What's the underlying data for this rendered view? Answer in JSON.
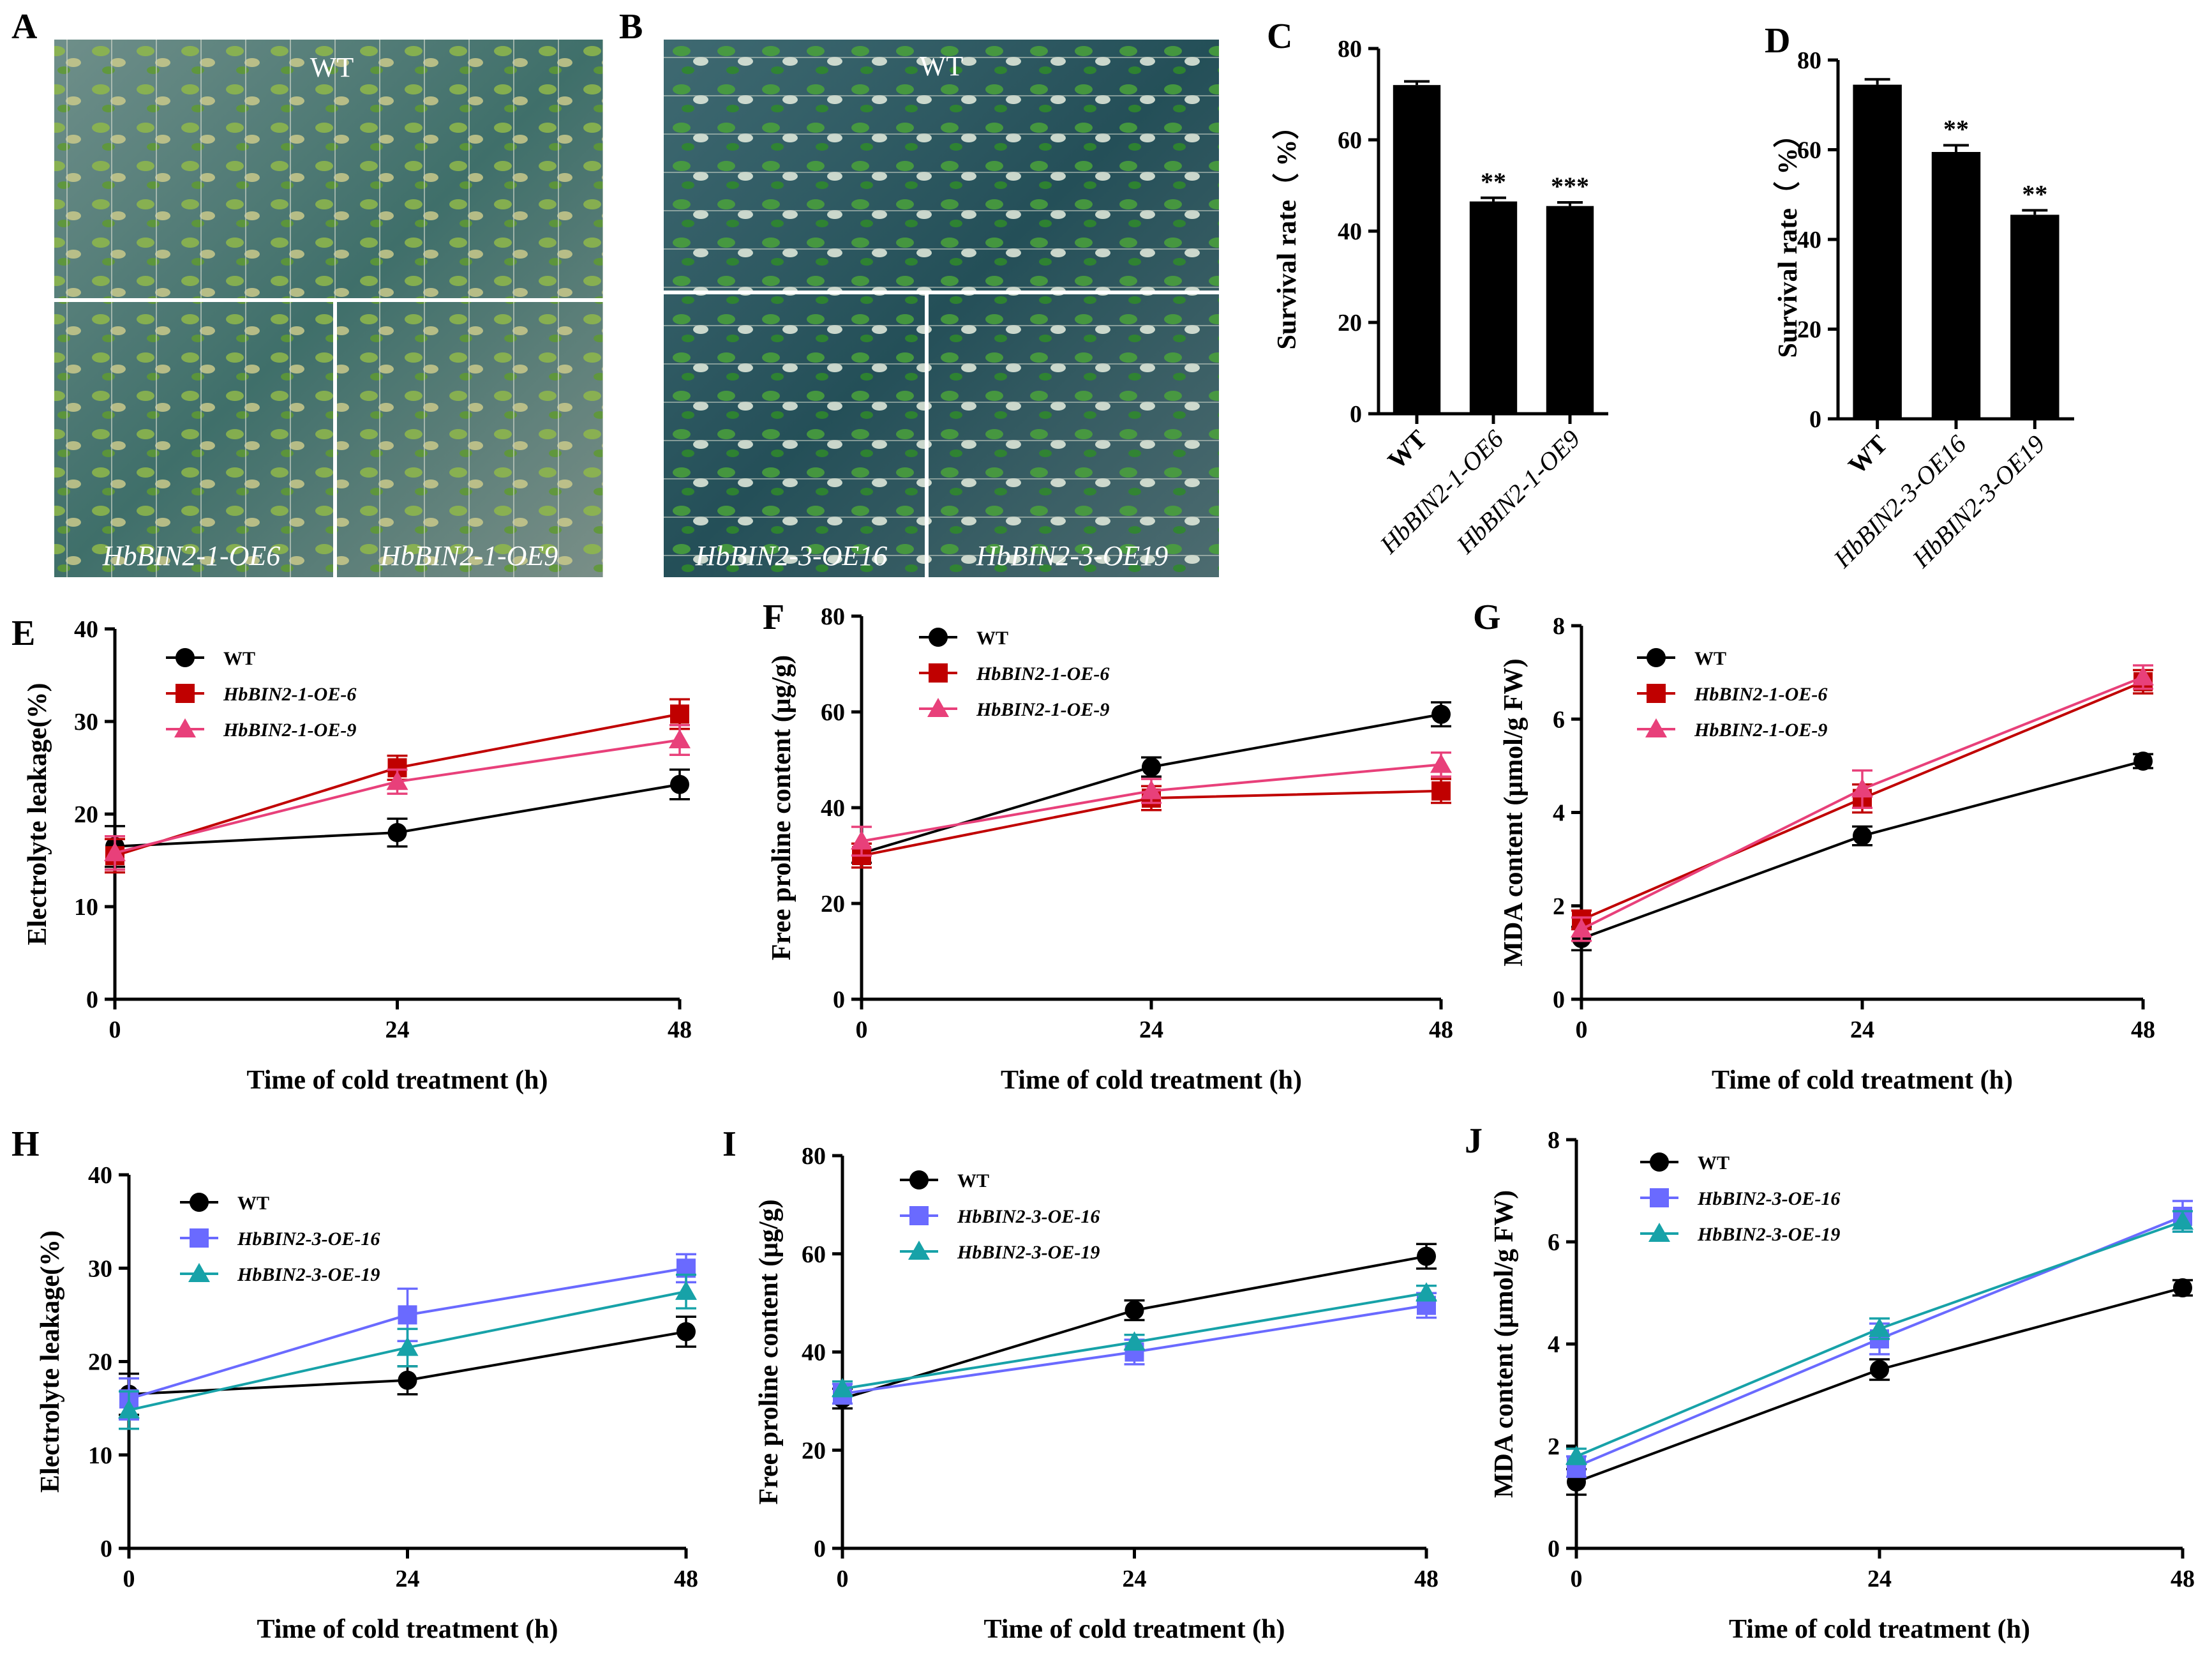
{
  "photos": {
    "A": {
      "letter": "A",
      "top_label": "WT",
      "bottom_left_label": "HbBIN2-1-OE6",
      "bottom_right_label": "HbBIN2-1-OE9"
    },
    "B": {
      "letter": "B",
      "top_label": "WT",
      "bottom_left_label": "HbBIN2-3-OE16",
      "bottom_right_label": "HbBIN2-3-OE19"
    }
  },
  "colors": {
    "wt": "#000000",
    "oe1_line6": "#c00000",
    "oe1_line9": "#e8407a",
    "oe3_line16": "#6a6aff",
    "oe3_line19": "#17a2a8",
    "bar": "#000000"
  },
  "chart_data": [
    {
      "id": "C",
      "letter": "C",
      "type": "bar",
      "categories": [
        "WT",
        "HbBIN2-1-OE6",
        "HbBIN2-1-OE9"
      ],
      "values": [
        72,
        46.5,
        45.5
      ],
      "errors": [
        0.8,
        0.8,
        0.8
      ],
      "significance": [
        "",
        "**",
        "***"
      ],
      "ylabel": "Survival rate（ %）",
      "ylim": [
        0,
        80
      ],
      "yticks": [
        0,
        20,
        40,
        60,
        80
      ]
    },
    {
      "id": "D",
      "letter": "D",
      "type": "bar",
      "categories": [
        "WT",
        "HbBIN2-3-OE16",
        "HbBIN2-3-OE19"
      ],
      "values": [
        74.5,
        59.5,
        45.5
      ],
      "errors": [
        1.2,
        1.5,
        1.0
      ],
      "significance": [
        "",
        "**",
        "**"
      ],
      "ylabel": "Survival rate（ %）",
      "ylim": [
        0,
        80
      ],
      "yticks": [
        0,
        20,
        40,
        60,
        80
      ]
    },
    {
      "id": "E",
      "letter": "E",
      "type": "line",
      "x": [
        0,
        24,
        48
      ],
      "xticks": [
        0,
        24,
        48
      ],
      "xlabel": "Time of cold treatment (h)",
      "ylabel": "Electrolyte leakage(%)",
      "ylim": [
        0,
        40
      ],
      "yticks": [
        0,
        10,
        20,
        30,
        40
      ],
      "series": [
        {
          "name": "WT",
          "marker": "circle",
          "color": "#000000",
          "values": [
            16.5,
            18,
            23.2
          ],
          "errors": [
            2.2,
            1.5,
            1.6
          ]
        },
        {
          "name": "HbBIN2-1-OE-6",
          "marker": "square",
          "color": "#c00000",
          "values": [
            15.5,
            25,
            30.8
          ],
          "errors": [
            1.8,
            1.3,
            1.6
          ]
        },
        {
          "name": "HbBIN2-1-OE-9",
          "marker": "triangle",
          "color": "#e8407a",
          "values": [
            15.8,
            23.5,
            28
          ],
          "errors": [
            1.8,
            1.3,
            1.6
          ]
        }
      ]
    },
    {
      "id": "F",
      "letter": "F",
      "type": "line",
      "x": [
        0,
        24,
        48
      ],
      "xticks": [
        0,
        24,
        48
      ],
      "xlabel": "Time of cold treatment (h)",
      "ylabel": "Free proline content (μg/g)",
      "ylim": [
        0,
        80
      ],
      "yticks": [
        0,
        20,
        40,
        60,
        80
      ],
      "series": [
        {
          "name": "WT",
          "marker": "circle",
          "color": "#000000",
          "values": [
            30.5,
            48.5,
            59.5
          ],
          "errors": [
            2.0,
            2.0,
            2.5
          ]
        },
        {
          "name": "HbBIN2-1-OE-6",
          "marker": "square",
          "color": "#c00000",
          "values": [
            30,
            42,
            43.5
          ],
          "errors": [
            2.5,
            2.5,
            2.5
          ]
        },
        {
          "name": "HbBIN2-1-OE-9",
          "marker": "triangle",
          "color": "#e8407a",
          "values": [
            33,
            43.5,
            49
          ],
          "errors": [
            3.0,
            2.5,
            2.5
          ]
        }
      ]
    },
    {
      "id": "G",
      "letter": "G",
      "type": "line",
      "x": [
        0,
        24,
        48
      ],
      "xticks": [
        0,
        24,
        48
      ],
      "xlabel": "Time of cold treatment (h)",
      "ylabel": "MDA content (μmol/g FW)",
      "ylim": [
        0,
        8
      ],
      "yticks": [
        0,
        2,
        4,
        6,
        8
      ],
      "series": [
        {
          "name": "WT",
          "marker": "circle",
          "color": "#000000",
          "values": [
            1.3,
            3.5,
            5.1
          ],
          "errors": [
            0.25,
            0.2,
            0.15
          ]
        },
        {
          "name": "HbBIN2-1-OE-6",
          "marker": "square",
          "color": "#c00000",
          "values": [
            1.7,
            4.3,
            6.8
          ],
          "errors": [
            0.2,
            0.3,
            0.25
          ]
        },
        {
          "name": "HbBIN2-1-OE-9",
          "marker": "triangle",
          "color": "#e8407a",
          "values": [
            1.5,
            4.5,
            6.9
          ],
          "errors": [
            0.25,
            0.4,
            0.25
          ]
        }
      ]
    },
    {
      "id": "H",
      "letter": "H",
      "type": "line",
      "x": [
        0,
        24,
        48
      ],
      "xticks": [
        0,
        24,
        48
      ],
      "xlabel": "Time of cold treatment (h)",
      "ylabel": "Electrolyte leakage(%)",
      "ylim": [
        0,
        40
      ],
      "yticks": [
        0,
        10,
        20,
        30,
        40
      ],
      "series": [
        {
          "name": "WT",
          "marker": "circle",
          "color": "#000000",
          "values": [
            16.5,
            18,
            23.2
          ],
          "errors": [
            2.2,
            1.5,
            1.6
          ]
        },
        {
          "name": "HbBIN2-3-OE-16",
          "marker": "square",
          "color": "#6a6aff",
          "values": [
            16,
            25,
            30
          ],
          "errors": [
            2.2,
            2.8,
            1.5
          ]
        },
        {
          "name": "HbBIN2-3-OE-19",
          "marker": "triangle",
          "color": "#17a2a8",
          "values": [
            14.8,
            21.5,
            27.5
          ],
          "errors": [
            2.0,
            2.0,
            1.8
          ]
        }
      ]
    },
    {
      "id": "I",
      "letter": "I",
      "type": "line",
      "x": [
        0,
        24,
        48
      ],
      "xticks": [
        0,
        24,
        48
      ],
      "xlabel": "Time of cold treatment (h)",
      "ylabel": "Free proline content (μg/g)",
      "ylim": [
        0,
        80
      ],
      "yticks": [
        0,
        20,
        40,
        60,
        80
      ],
      "series": [
        {
          "name": "WT",
          "marker": "circle",
          "color": "#000000",
          "values": [
            30.5,
            48.5,
            59.5
          ],
          "errors": [
            2.0,
            2.0,
            2.5
          ]
        },
        {
          "name": "HbBIN2-3-OE-16",
          "marker": "square",
          "color": "#6a6aff",
          "values": [
            31.5,
            40,
            49.5
          ],
          "errors": [
            2.0,
            2.5,
            2.5
          ]
        },
        {
          "name": "HbBIN2-3-OE-19",
          "marker": "triangle",
          "color": "#17a2a8",
          "values": [
            32.5,
            42,
            52
          ],
          "errors": [
            1.5,
            1.5,
            1.5
          ]
        }
      ]
    },
    {
      "id": "J",
      "letter": "J",
      "type": "line",
      "x": [
        0,
        24,
        48
      ],
      "xticks": [
        0,
        24,
        48
      ],
      "xlabel": "Time of cold treatment (h)",
      "ylabel": "MDA content (μmol/g FW)",
      "ylim": [
        0,
        8
      ],
      "yticks": [
        0,
        2,
        4,
        6,
        8
      ],
      "series": [
        {
          "name": "WT",
          "marker": "circle",
          "color": "#000000",
          "values": [
            1.3,
            3.5,
            5.1
          ],
          "errors": [
            0.25,
            0.2,
            0.15
          ]
        },
        {
          "name": "HbBIN2-3-OE-16",
          "marker": "square",
          "color": "#6a6aff",
          "values": [
            1.6,
            4.1,
            6.5
          ],
          "errors": [
            0.2,
            0.3,
            0.3
          ]
        },
        {
          "name": "HbBIN2-3-OE-19",
          "marker": "triangle",
          "color": "#17a2a8",
          "values": [
            1.8,
            4.3,
            6.4
          ],
          "errors": [
            0.15,
            0.2,
            0.2
          ]
        }
      ]
    }
  ]
}
